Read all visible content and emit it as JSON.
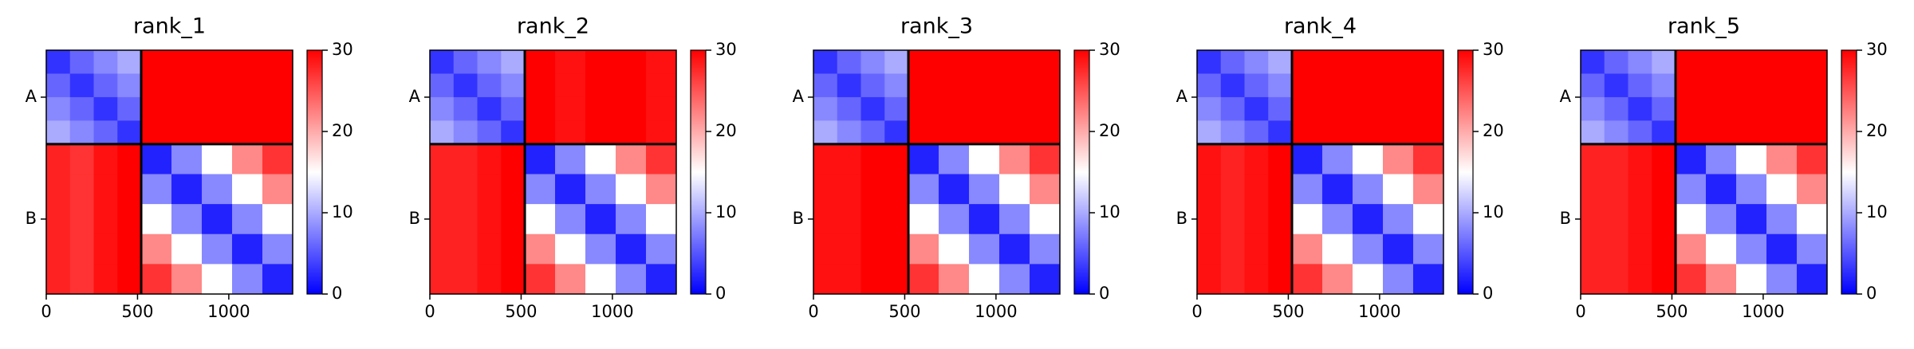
{
  "chart_data": [
    {
      "type": "heatmap",
      "title": "rank_1",
      "colormap": "bwr",
      "clim": [
        0,
        30
      ],
      "cticks": [
        0,
        10,
        20,
        30
      ],
      "xlim": [
        0,
        1350
      ],
      "xticks": [
        0,
        500,
        1000
      ],
      "ylim": [
        1350,
        0
      ],
      "yticks": [
        {
          "value": 260,
          "label": "A"
        },
        {
          "value": 935,
          "label": "B"
        }
      ],
      "chain_breaks": [
        520
      ],
      "x_edges": [
        0,
        130,
        260,
        390,
        520,
        686,
        852,
        1018,
        1184,
        1350
      ],
      "matrix": [
        [
          3,
          6,
          8,
          10,
          30,
          30,
          30,
          30,
          30
        ],
        [
          6,
          3,
          6,
          8,
          30,
          30,
          30,
          30,
          30
        ],
        [
          8,
          6,
          3,
          6,
          30,
          30,
          30,
          30,
          30
        ],
        [
          10,
          8,
          6,
          3,
          30,
          30,
          30,
          30,
          30
        ],
        [
          28,
          27,
          29,
          30,
          2,
          8,
          15,
          22,
          27
        ],
        [
          28,
          27,
          29,
          30,
          8,
          2,
          8,
          15,
          22
        ],
        [
          28,
          27,
          29,
          30,
          15,
          8,
          2,
          8,
          15
        ],
        [
          28,
          27,
          29,
          30,
          22,
          15,
          8,
          2,
          8
        ],
        [
          28,
          27,
          29,
          30,
          27,
          22,
          15,
          8,
          2
        ]
      ]
    },
    {
      "type": "heatmap",
      "title": "rank_2",
      "colormap": "bwr",
      "clim": [
        0,
        30
      ],
      "cticks": [
        0,
        10,
        20,
        30
      ],
      "xlim": [
        0,
        1350
      ],
      "xticks": [
        0,
        500,
        1000
      ],
      "ylim": [
        1350,
        0
      ],
      "yticks": [
        {
          "value": 260,
          "label": "A"
        },
        {
          "value": 935,
          "label": "B"
        }
      ],
      "chain_breaks": [
        520
      ],
      "x_edges": [
        0,
        130,
        260,
        390,
        520,
        686,
        852,
        1018,
        1184,
        1350
      ],
      "matrix": [
        [
          3,
          6,
          8,
          10,
          30,
          29,
          30,
          30,
          29
        ],
        [
          6,
          3,
          6,
          8,
          30,
          29,
          30,
          30,
          29
        ],
        [
          8,
          6,
          3,
          6,
          30,
          29,
          30,
          30,
          29
        ],
        [
          10,
          8,
          6,
          3,
          30,
          29,
          30,
          30,
          29
        ],
        [
          28,
          28,
          29,
          30,
          2,
          8,
          15,
          22,
          27
        ],
        [
          28,
          28,
          29,
          30,
          8,
          2,
          8,
          15,
          22
        ],
        [
          28,
          28,
          29,
          30,
          15,
          8,
          2,
          8,
          15
        ],
        [
          28,
          28,
          29,
          30,
          22,
          15,
          8,
          2,
          8
        ],
        [
          28,
          28,
          29,
          30,
          27,
          22,
          15,
          8,
          2
        ]
      ]
    },
    {
      "type": "heatmap",
      "title": "rank_3",
      "colormap": "bwr",
      "clim": [
        0,
        30
      ],
      "cticks": [
        0,
        10,
        20,
        30
      ],
      "xlim": [
        0,
        1350
      ],
      "xticks": [
        0,
        500,
        1000
      ],
      "ylim": [
        1350,
        0
      ],
      "yticks": [
        {
          "value": 260,
          "label": "A"
        },
        {
          "value": 935,
          "label": "B"
        }
      ],
      "chain_breaks": [
        520
      ],
      "x_edges": [
        0,
        130,
        260,
        390,
        520,
        686,
        852,
        1018,
        1184,
        1350
      ],
      "matrix": [
        [
          3,
          6,
          8,
          10,
          30,
          30,
          30,
          30,
          30
        ],
        [
          6,
          3,
          6,
          8,
          30,
          30,
          30,
          30,
          30
        ],
        [
          8,
          6,
          3,
          6,
          30,
          30,
          30,
          30,
          30
        ],
        [
          10,
          8,
          6,
          3,
          30,
          30,
          30,
          30,
          30
        ],
        [
          29,
          29,
          30,
          30,
          2,
          8,
          15,
          22,
          27
        ],
        [
          29,
          29,
          30,
          30,
          8,
          2,
          8,
          15,
          22
        ],
        [
          29,
          29,
          30,
          30,
          15,
          8,
          2,
          8,
          15
        ],
        [
          29,
          29,
          30,
          30,
          22,
          15,
          8,
          2,
          8
        ],
        [
          29,
          29,
          30,
          30,
          27,
          22,
          15,
          8,
          2
        ]
      ]
    },
    {
      "type": "heatmap",
      "title": "rank_4",
      "colormap": "bwr",
      "clim": [
        0,
        30
      ],
      "cticks": [
        0,
        10,
        20,
        30
      ],
      "xlim": [
        0,
        1350
      ],
      "xticks": [
        0,
        500,
        1000
      ],
      "ylim": [
        1350,
        0
      ],
      "yticks": [
        {
          "value": 260,
          "label": "A"
        },
        {
          "value": 935,
          "label": "B"
        }
      ],
      "chain_breaks": [
        520
      ],
      "x_edges": [
        0,
        130,
        260,
        390,
        520,
        686,
        852,
        1018,
        1184,
        1350
      ],
      "matrix": [
        [
          3,
          6,
          8,
          10,
          30,
          30,
          30,
          30,
          30
        ],
        [
          6,
          3,
          6,
          8,
          30,
          30,
          30,
          30,
          30
        ],
        [
          8,
          6,
          3,
          6,
          30,
          30,
          30,
          30,
          30
        ],
        [
          10,
          8,
          6,
          3,
          30,
          30,
          30,
          30,
          30
        ],
        [
          29,
          28,
          29,
          30,
          2,
          8,
          15,
          22,
          27
        ],
        [
          29,
          28,
          29,
          30,
          8,
          2,
          8,
          15,
          22
        ],
        [
          29,
          28,
          29,
          30,
          15,
          8,
          2,
          8,
          15
        ],
        [
          29,
          28,
          29,
          30,
          22,
          15,
          8,
          2,
          8
        ],
        [
          29,
          28,
          29,
          30,
          27,
          22,
          15,
          8,
          2
        ]
      ]
    },
    {
      "type": "heatmap",
      "title": "rank_5",
      "colormap": "bwr",
      "clim": [
        0,
        30
      ],
      "cticks": [
        0,
        10,
        20,
        30
      ],
      "xlim": [
        0,
        1350
      ],
      "xticks": [
        0,
        500,
        1000
      ],
      "ylim": [
        1350,
        0
      ],
      "yticks": [
        {
          "value": 260,
          "label": "A"
        },
        {
          "value": 935,
          "label": "B"
        }
      ],
      "chain_breaks": [
        520
      ],
      "x_edges": [
        0,
        130,
        260,
        390,
        520,
        686,
        852,
        1018,
        1184,
        1350
      ],
      "matrix": [
        [
          3,
          6,
          8,
          10,
          30,
          30,
          30,
          30,
          30
        ],
        [
          6,
          3,
          6,
          8,
          30,
          30,
          30,
          30,
          30
        ],
        [
          8,
          6,
          3,
          6,
          30,
          30,
          30,
          30,
          30
        ],
        [
          10,
          8,
          6,
          3,
          30,
          30,
          30,
          30,
          30
        ],
        [
          28,
          28,
          29,
          30,
          2,
          8,
          15,
          22,
          27
        ],
        [
          28,
          28,
          29,
          30,
          8,
          2,
          8,
          15,
          22
        ],
        [
          28,
          28,
          29,
          30,
          15,
          8,
          2,
          8,
          15
        ],
        [
          28,
          28,
          29,
          30,
          22,
          15,
          8,
          2,
          8
        ],
        [
          28,
          28,
          29,
          30,
          27,
          22,
          15,
          8,
          2
        ]
      ]
    }
  ]
}
